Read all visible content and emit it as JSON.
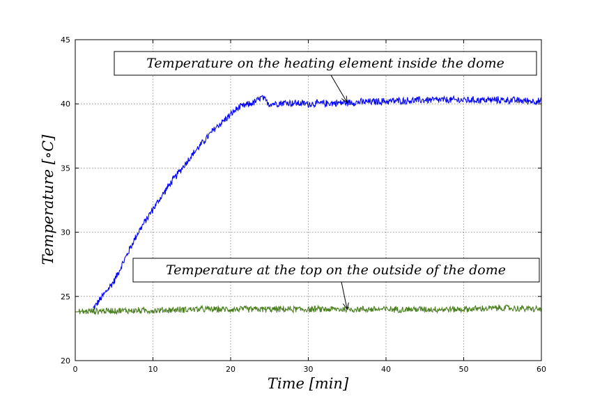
{
  "chart_data": {
    "type": "line",
    "title": "",
    "xlabel": "Time [min]",
    "ylabel": "Temperature [∘C]",
    "xlim": [
      0,
      60
    ],
    "ylim": [
      20,
      45
    ],
    "xticks": [
      0,
      10,
      20,
      30,
      40,
      50,
      60
    ],
    "yticks": [
      20,
      25,
      30,
      35,
      40,
      45
    ],
    "xtick_labels": [
      "0",
      "10",
      "20",
      "30",
      "40",
      "50",
      "60"
    ],
    "ytick_labels": [
      "20",
      "25",
      "30",
      "35",
      "40",
      "45"
    ],
    "grid": true,
    "legend": "none",
    "series": [
      {
        "color": "#0000ff",
        "noise": 0.2,
        "x": [
          0,
          2,
          3,
          5,
          8,
          10,
          12,
          15,
          18,
          21,
          22,
          23,
          24,
          25,
          27,
          30,
          35,
          40,
          45,
          50,
          55,
          60
        ],
        "y": [
          23.6,
          23.8,
          24.6,
          26.2,
          29.9,
          31.8,
          33.6,
          36.0,
          38.1,
          39.7,
          39.9,
          40.1,
          40.5,
          40.0,
          40.1,
          40.0,
          40.1,
          40.2,
          40.3,
          40.3,
          40.3,
          40.2
        ]
      },
      {
        "color": "#4a7f1f",
        "noise": 0.18,
        "x": [
          0,
          5,
          10,
          15,
          20,
          25,
          30,
          35,
          40,
          45,
          50,
          55,
          60
        ],
        "y": [
          23.8,
          23.9,
          23.9,
          24.0,
          24.0,
          24.0,
          24.0,
          24.0,
          24.0,
          24.0,
          24.0,
          24.1,
          24.0
        ]
      }
    ],
    "annotations": [
      {
        "text": "Temperature on the heating element inside the dome",
        "xy": [
          35,
          40.1
        ]
      },
      {
        "text": "Temperature at the top on the outside of the dome",
        "xy": [
          35,
          24.0
        ]
      }
    ]
  }
}
